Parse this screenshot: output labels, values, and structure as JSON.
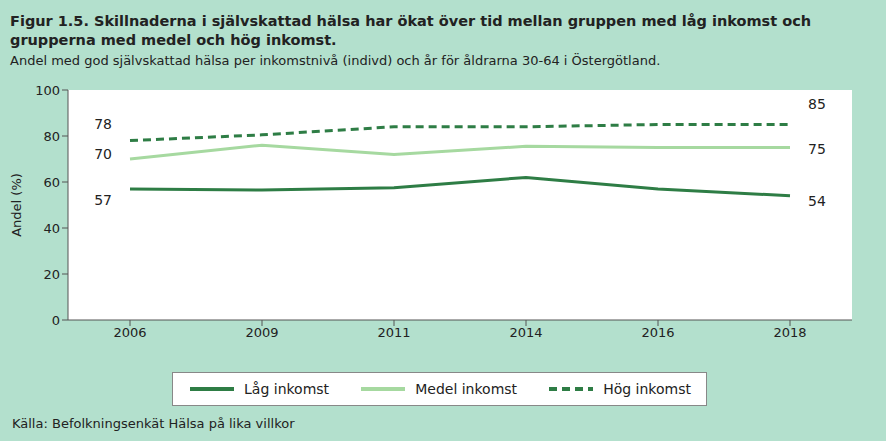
{
  "chart_data": {
    "type": "line",
    "title": "Figur 1.5. Skillnaderna i självskattad hälsa har ökat över tid mellan gruppen med låg inkomst och grupperna med medel och hög inkomst.",
    "subtitle": "Andel med god självskattad hälsa per inkomstnivå (indivd) och år för åldrarna 30-64 i Östergötland.",
    "y_label": "Andel (%)",
    "source": "Källa: Befolkningsenkät Hälsa på lika villkor",
    "categories": [
      "2006",
      "2009",
      "2011",
      "2014",
      "2016",
      "2018"
    ],
    "series": [
      {
        "name": "Låg inkomst",
        "color": "#2e7d45",
        "line_style": "solid",
        "values": [
          57,
          56.5,
          57.5,
          62,
          57,
          54
        ],
        "value_labels": [
          "57",
          null,
          null,
          null,
          null,
          "54"
        ]
      },
      {
        "name": "Medel inkomst",
        "color": "#a6d9a0",
        "line_style": "solid",
        "values": [
          70,
          76,
          72,
          75.5,
          75,
          75
        ],
        "value_labels": [
          "70",
          null,
          null,
          null,
          null,
          "75"
        ]
      },
      {
        "name": "Hög inkomst",
        "color": "#2e7d45",
        "line_style": "dashed",
        "values": [
          78,
          80.5,
          84,
          84,
          85,
          85
        ],
        "value_labels": [
          "78",
          null,
          null,
          null,
          null,
          "85"
        ]
      }
    ],
    "ylim": [
      0,
      100
    ],
    "yticks": [
      0,
      20,
      40,
      60,
      80,
      100
    ],
    "grid": false,
    "legend": "bottom"
  }
}
